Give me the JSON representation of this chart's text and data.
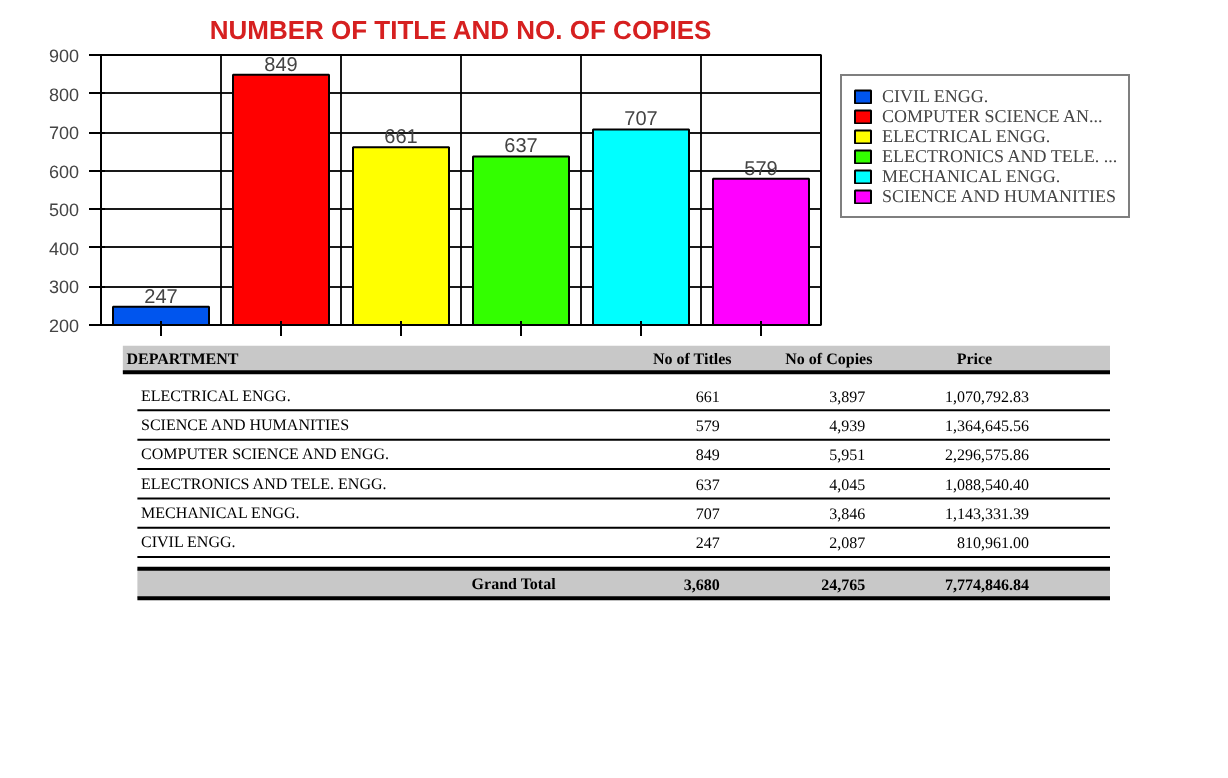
{
  "chart_data": [
    {
      "type": "bar",
      "title": "NUMBER OF TITLE AND NO. OF COPIES",
      "categories": [
        null,
        null,
        null,
        null,
        null,
        null
      ],
      "series": [
        {
          "name": "CIVIL ENGG.",
          "color": "#0055ee",
          "values": [
            247,
            null,
            null,
            null,
            null,
            null
          ]
        },
        {
          "name": "COMPUTER SCIENCE AN...",
          "color": "#ff0000",
          "values": [
            null,
            849,
            null,
            null,
            null,
            null
          ]
        },
        {
          "name": "ELECTRICAL ENGG.",
          "color": "#ffff00",
          "values": [
            null,
            null,
            661,
            null,
            null,
            null
          ]
        },
        {
          "name": "ELECTRONICS AND TELE. ...",
          "color": "#33ff00",
          "values": [
            null,
            null,
            null,
            637,
            null,
            null
          ]
        },
        {
          "name": "MECHANICAL ENGG.",
          "color": "#00ffff",
          "values": [
            null,
            null,
            null,
            null,
            707,
            null
          ]
        },
        {
          "name": "SCIENCE AND HUMANITIES",
          "color": "#ff00ff",
          "values": [
            null,
            null,
            null,
            null,
            null,
            579
          ]
        }
      ],
      "ylim": [
        200,
        900
      ],
      "yticks": [
        200,
        300,
        400,
        500,
        600,
        700,
        800,
        900
      ],
      "grid": true,
      "legend": "right",
      "data_labels": true
    },
    {
      "type": "other",
      "xlabel": "DEPARTMENT",
      "categories": [
        "ELECTRICAL ENGG.",
        "SCIENCE AND HUMANITIES",
        "COMPUTER SCIENCE AND ENGG.",
        "ELECTRONICS AND TELE. ENGG.",
        "MECHANICAL ENGG.",
        "CIVIL ENGG.",
        "Grand Total"
      ],
      "series": [
        {
          "name": "No of Titles",
          "values": [
            661,
            579,
            849,
            637,
            707,
            247,
            3680
          ],
          "value_labels": [
            "661",
            "579",
            "849",
            "637",
            "707",
            "247",
            "3,680"
          ]
        },
        {
          "name": "No of Copies",
          "values": [
            3897,
            4939,
            5951,
            4045,
            3846,
            2087,
            24765
          ],
          "value_labels": [
            "3,897",
            "4,939",
            "5,951",
            "4,045",
            "3,846",
            "2,087",
            "24,765"
          ]
        },
        {
          "name": "Price",
          "values": [
            1070792.83,
            1364645.56,
            2296575.86,
            1088540.4,
            1143331.39,
            810961.0,
            7774846.84
          ],
          "value_labels": [
            "1,070,792.83",
            "1,364,645.56",
            "2,296,575.86",
            "1,088,540.40",
            "1,143,331.39",
            "810,961.00",
            "7,774,846.84"
          ]
        }
      ]
    }
  ]
}
